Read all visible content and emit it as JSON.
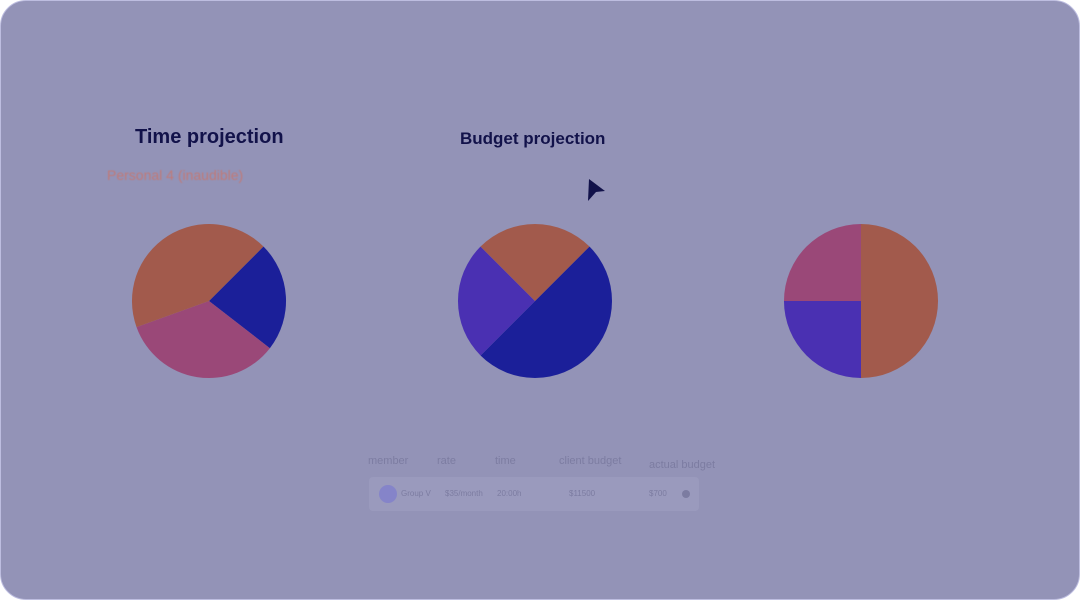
{
  "titles": {
    "time": "Time projection",
    "budget": "Budget projection",
    "time_subtitle": "Personal 4 (inaudible)"
  },
  "colors": {
    "background": "#9393b7",
    "title": "#12124a",
    "navy": "#1b1f99",
    "purple": "#4a30b2",
    "rust": "#a25a4c",
    "plum": "#9a4878"
  },
  "chart_data": [
    {
      "type": "pie",
      "title": "Time projection",
      "values": [
        23,
        34,
        43
      ],
      "colors": [
        "#1b1f99",
        "#9a4878",
        "#a25a4c"
      ],
      "start_angle_deg": 45
    },
    {
      "type": "pie",
      "title": "Budget projection",
      "values": [
        50,
        25,
        25
      ],
      "colors": [
        "#1b1f99",
        "#4a30b2",
        "#a25a4c"
      ],
      "start_angle_deg": 45
    },
    {
      "type": "pie",
      "title": "",
      "values": [
        50,
        25,
        25
      ],
      "colors": [
        "#a25a4c",
        "#4a30b2",
        "#9a4878"
      ],
      "start_angle_deg": 0
    }
  ],
  "table": {
    "headers": [
      "member",
      "rate",
      "time",
      "client budget",
      "actual budget"
    ],
    "row": {
      "member": "Group V",
      "rate": "$35/month",
      "time": "20:00h",
      "client_budget": "$11500",
      "actual_budget": "$700"
    }
  }
}
